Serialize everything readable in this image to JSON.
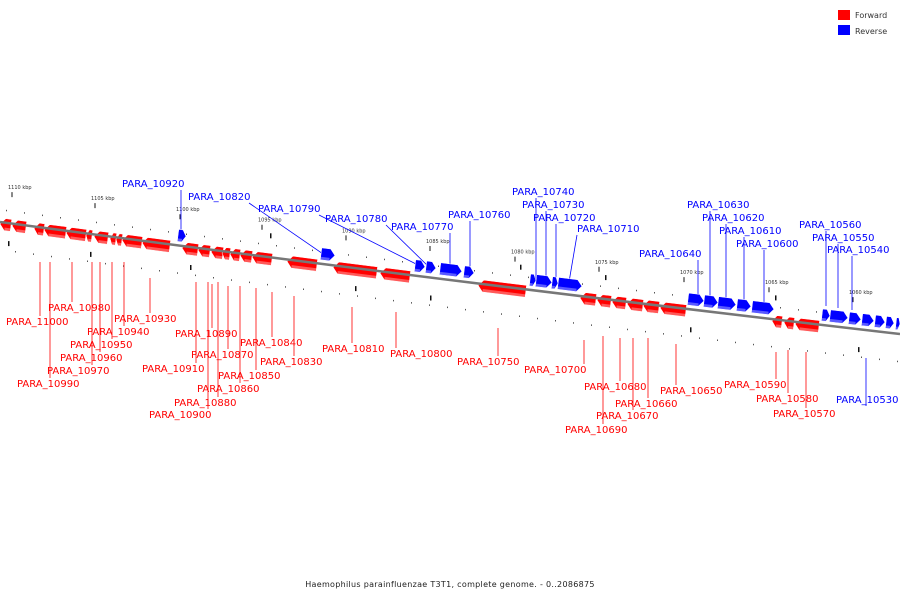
{
  "caption": "Haemophilus parainfluenzae T3T1, complete genome. - 0..2086875",
  "legend": [
    {
      "label": "Forward",
      "color": "#ff0000"
    },
    {
      "label": "Reverse",
      "color": "#0000ff"
    }
  ],
  "colors": {
    "forward": "#ff0000",
    "reverse": "#0000ff",
    "backbone": "#777777"
  },
  "tick_labels": [
    "1110 kbp",
    "1105 kbp",
    "1100 kbp",
    "1095 kbp",
    "1090 kbp",
    "1085 kbp",
    "1080 kbp",
    "1075 kbp",
    "1070 kbp",
    "1065 kbp",
    "1060 kbp"
  ],
  "forward_labels": [
    "PARA_11000",
    "PARA_10990",
    "PARA_10980",
    "PARA_10970",
    "PARA_10960",
    "PARA_10950",
    "PARA_10940",
    "PARA_10930",
    "PARA_10910",
    "PARA_10900",
    "PARA_10890",
    "PARA_10880",
    "PARA_10870",
    "PARA_10860",
    "PARA_10850",
    "PARA_10840",
    "PARA_10830",
    "PARA_10810",
    "PARA_10800",
    "PARA_10750",
    "PARA_10700",
    "PARA_10690",
    "PARA_10680",
    "PARA_10670",
    "PARA_10660",
    "PARA_10650",
    "PARA_10590",
    "PARA_10580",
    "PARA_10570"
  ],
  "reverse_labels": [
    "PARA_10920",
    "PARA_10820",
    "PARA_10790",
    "PARA_10780",
    "PARA_10770",
    "PARA_10760",
    "PARA_10740",
    "PARA_10730",
    "PARA_10720",
    "PARA_10710",
    "PARA_10640",
    "PARA_10630",
    "PARA_10620",
    "PARA_10610",
    "PARA_10600",
    "PARA_10560",
    "PARA_10550",
    "PARA_10540",
    "PARA_10530"
  ]
}
